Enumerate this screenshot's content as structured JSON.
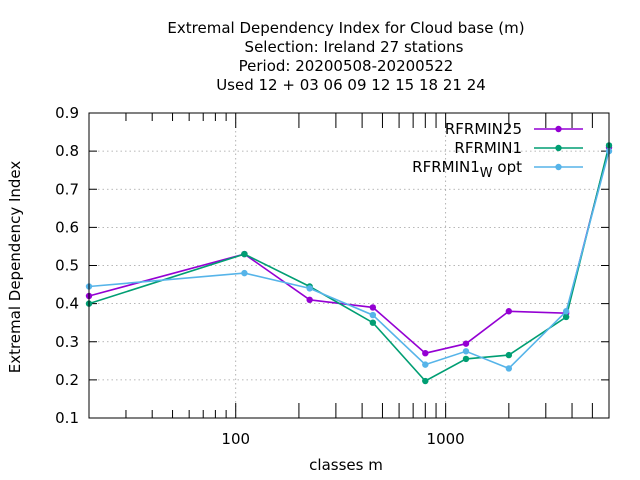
{
  "chart_data": {
    "type": "line",
    "title_lines": [
      "Extremal Dependency Index  for Cloud base (m)",
      "Selection: Ireland      27 stations",
      "Period: 20200508-20200522",
      "Used  12 + 03 06 09 12 15 18 21 24"
    ],
    "xlabel": "classes m",
    "ylabel": "Extremal Dependency Index",
    "x_scale": "log",
    "xlim": [
      20,
      6000
    ],
    "ylim": [
      0.1,
      0.9
    ],
    "x_ticks": [
      100,
      1000
    ],
    "x_tick_labels": [
      "100",
      "1000"
    ],
    "y_ticks": [
      0.1,
      0.2,
      0.3,
      0.4,
      0.5,
      0.6,
      0.7,
      0.8,
      0.9
    ],
    "y_tick_labels": [
      "0.1",
      "0.2",
      "0.3",
      "0.4",
      "0.5",
      "0.6",
      "0.7",
      "0.8",
      "0.9"
    ],
    "grid": true,
    "legend_position": "top-right",
    "series": [
      {
        "name": "RFRMIN25",
        "color": "#9400d3",
        "x": [
          20,
          110,
          225,
          450,
          800,
          1250,
          2000,
          3750,
          6000
        ],
        "y": [
          0.42,
          0.53,
          0.41,
          0.39,
          0.27,
          0.295,
          0.38,
          0.375,
          0.81
        ]
      },
      {
        "name": "RFRMIN1",
        "color": "#009e73",
        "x": [
          20,
          110,
          225,
          450,
          800,
          1250,
          2000,
          3750,
          6000
        ],
        "y": [
          0.4,
          0.53,
          0.445,
          0.35,
          0.197,
          0.255,
          0.265,
          0.365,
          0.815
        ]
      },
      {
        "name": "RFRMIN1",
        "name_subscript": "W",
        "name_suffix": " opt",
        "color": "#56b4e9",
        "x": [
          20,
          110,
          225,
          450,
          800,
          1250,
          2000,
          3750,
          6000
        ],
        "y": [
          0.445,
          0.48,
          0.44,
          0.37,
          0.24,
          0.275,
          0.23,
          0.38,
          0.8
        ]
      }
    ]
  }
}
